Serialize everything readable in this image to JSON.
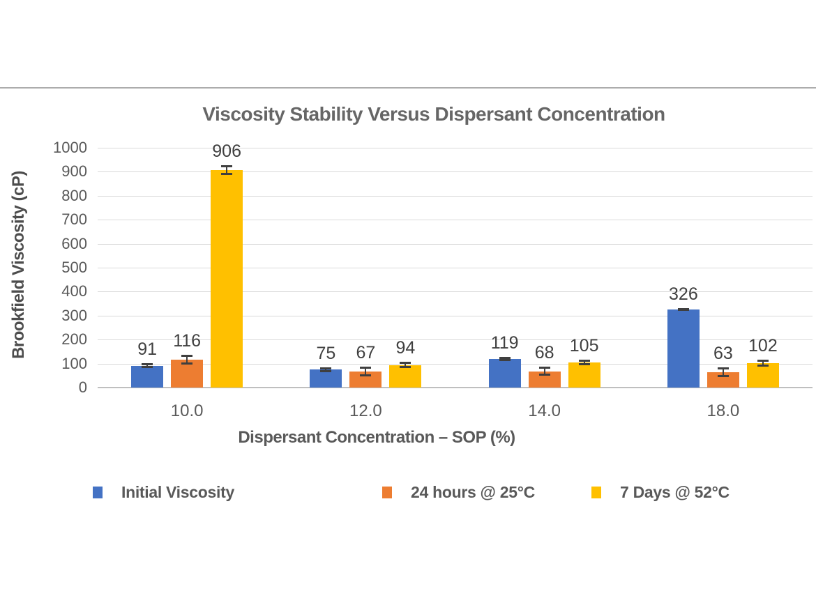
{
  "chart_data": {
    "type": "bar",
    "title": "Viscosity Stability Versus Dispersant Concentration",
    "xlabel": "Dispersant Concentration – SOP (%)",
    "ylabel": "Brookfield Viscosity (cP)",
    "ylim": [
      0,
      1000
    ],
    "ytick_step": 100,
    "grid": true,
    "legend_position": "bottom",
    "error_bars": true,
    "categories": [
      "10.0",
      "12.0",
      "14.0",
      "18.0"
    ],
    "series": [
      {
        "name": "Initial Viscosity",
        "color": "#4472C4",
        "values": [
          91,
          75,
          119,
          326
        ],
        "errors": [
          10,
          10,
          10,
          4
        ]
      },
      {
        "name": "24 hours @ 25°C",
        "color": "#ED7D31",
        "values": [
          116,
          67,
          68,
          63
        ],
        "errors": [
          20,
          20,
          20,
          20
        ]
      },
      {
        "name": "7 Days @ 52°C",
        "color": "#FFC000",
        "values": [
          906,
          94,
          105,
          102
        ],
        "errors": [
          20,
          14,
          12,
          14
        ]
      }
    ]
  },
  "styles": {
    "background": "#FFFFFF",
    "divider_color": "#ACACAC",
    "title_color": "#666666",
    "tick_label_color": "#595959",
    "data_label_color": "#404040",
    "gridline_color": "#D9D9D9",
    "axis_line_color": "#BFBFBF",
    "error_bar_color": "#3F3F3F"
  }
}
